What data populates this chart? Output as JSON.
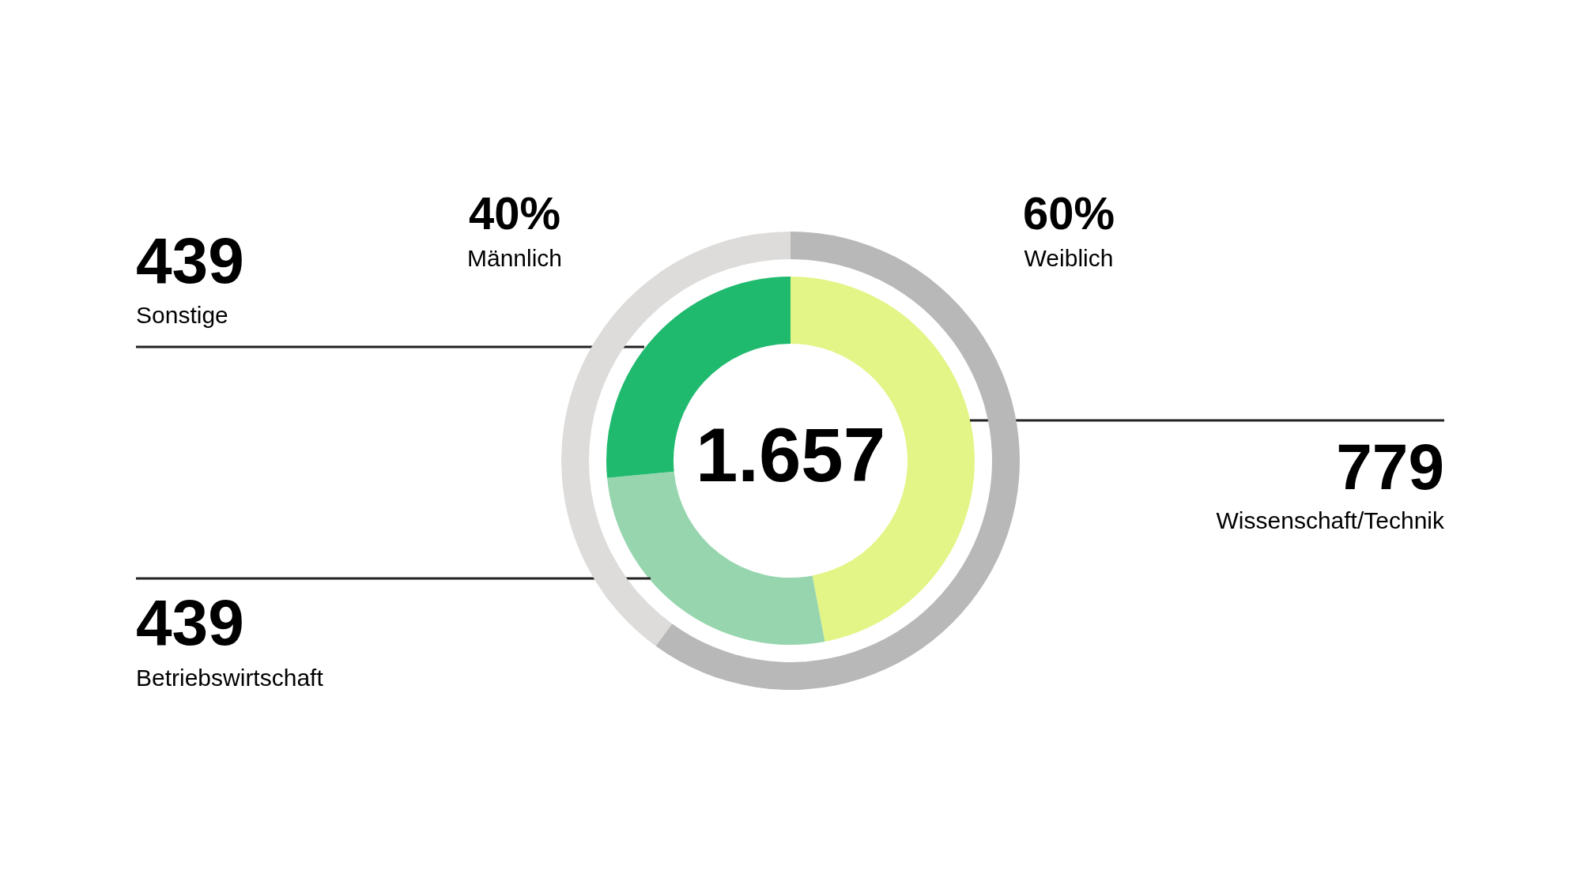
{
  "chart_data": [
    {
      "type": "donut",
      "categories": [
        "Wissenschaft/Technik",
        "Betriebswirtschaft",
        "Sonstige"
      ],
      "values": [
        779,
        439,
        439
      ],
      "colors": [
        "#e3f586",
        "#96d5ae",
        "#20ba6f"
      ],
      "data_labels": true,
      "legend": false,
      "annotations": [
        "1.657"
      ]
    },
    {
      "type": "donut",
      "categories": [
        "Weiblich",
        "Männlich"
      ],
      "values": [
        60,
        40
      ],
      "colors": [
        "#b9b8b8",
        "#dddcdb"
      ],
      "value_labels": [
        "60%",
        "40%"
      ],
      "legend": false
    }
  ]
}
